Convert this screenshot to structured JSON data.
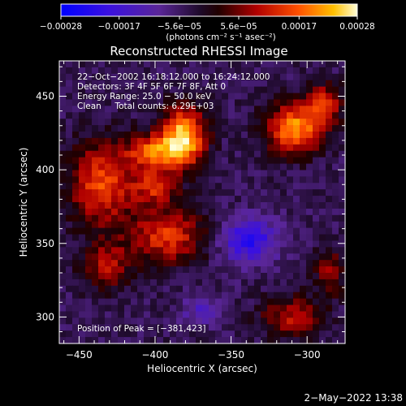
{
  "chart_data": {
    "type": "heatmap",
    "title": "Reconstructed RHESSI Image",
    "xlabel": "Heliocentric X (arcsec)",
    "ylabel": "Heliocentric Y (arcsec)",
    "xlim": [
      -463,
      -275
    ],
    "ylim": [
      282,
      474
    ],
    "x_ticks": [
      -450,
      -400,
      -350,
      -300
    ],
    "y_ticks": [
      300,
      350,
      400,
      450
    ],
    "x_tick_labels": [
      "−450",
      "−400",
      "−350",
      "−300"
    ],
    "y_tick_labels": [
      "300",
      "350",
      "400",
      "450"
    ],
    "colorbar": {
      "range": [
        -0.00028,
        0.00028
      ],
      "ticks": [
        -0.00028,
        -0.00017,
        -5.6e-05,
        5.6e-05,
        0.00017,
        0.00028
      ],
      "tick_labels": [
        "−0.00028",
        "−0.00017",
        "−5.6e−05",
        "5.6e−05",
        "0.00017",
        "0.00028"
      ],
      "label": "(photons cm⁻² s⁻¹ asec⁻²)"
    },
    "annotations": [
      "22−Oct−2002 16:18:12.000 to 16:24:12.000",
      "Detectors: 3F 4F 5F 6F 7F 8F, Att 0",
      "Energy Range: 25.0 − 50.0 keV",
      "Clean     Total counts: 6.29E+03"
    ],
    "peak_label": "Position of Peak = [−381,423]",
    "peak": [
      -381,
      423
    ],
    "sources": [
      {
        "x": -381,
        "y": 423,
        "sx": 10,
        "sy": 14,
        "amp": 1.0
      },
      {
        "x": -400,
        "y": 412,
        "sx": 13,
        "sy": 9,
        "amp": 0.75
      },
      {
        "x": -435,
        "y": 390,
        "sx": 15,
        "sy": 20,
        "amp": 0.7
      },
      {
        "x": -392,
        "y": 355,
        "sx": 17,
        "sy": 13,
        "amp": 0.65
      },
      {
        "x": -432,
        "y": 335,
        "sx": 11,
        "sy": 11,
        "amp": 0.5
      },
      {
        "x": -400,
        "y": 388,
        "sx": 10,
        "sy": 8,
        "amp": 0.55
      },
      {
        "x": -308,
        "y": 428,
        "sx": 13,
        "sy": 12,
        "amp": 0.9
      },
      {
        "x": -288,
        "y": 445,
        "sx": 8,
        "sy": 9,
        "amp": 0.6
      },
      {
        "x": -310,
        "y": 300,
        "sx": 14,
        "sy": 10,
        "amp": 0.5
      },
      {
        "x": -285,
        "y": 330,
        "sx": 7,
        "sy": 11,
        "amp": 0.42
      },
      {
        "x": -338,
        "y": 352,
        "sx": 13,
        "sy": 11,
        "amp": -0.6
      },
      {
        "x": -370,
        "y": 305,
        "sx": 9,
        "sy": 7,
        "amp": -0.3
      }
    ]
  },
  "footer": {
    "datetime": "2−May−2022 13:38"
  }
}
